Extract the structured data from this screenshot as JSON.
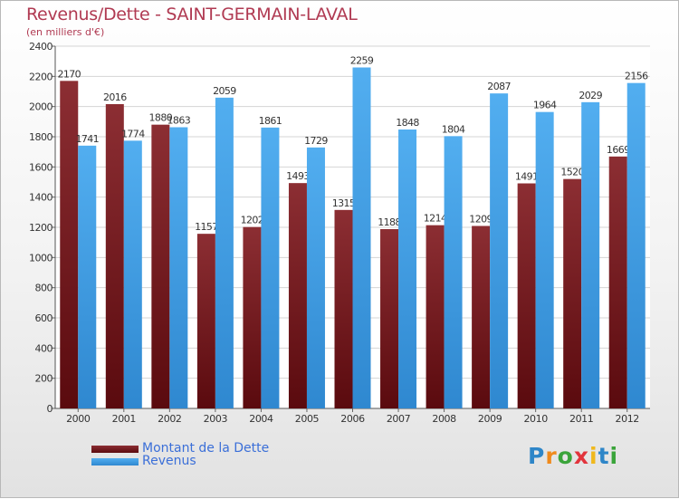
{
  "title": "Revenus/Dette - SAINT-GERMAIN-LAVAL",
  "subtitle": "(en milliers d'€)",
  "logo": {
    "letters": [
      "P",
      "r",
      "o",
      "x",
      "i",
      "t",
      "i"
    ],
    "colors": [
      "#2e86c8",
      "#f08a1c",
      "#3aa43a",
      "#e2343c",
      "#f0b81c",
      "#2e86c8",
      "#3aa43a"
    ]
  },
  "chart_data": {
    "type": "bar",
    "categories": [
      "2000",
      "2001",
      "2002",
      "2003",
      "2004",
      "2005",
      "2006",
      "2007",
      "2008",
      "2009",
      "2010",
      "2011",
      "2012"
    ],
    "series": [
      {
        "name": "Montant de la Dette",
        "color": "#7a1e22",
        "values": [
          2170,
          2016,
          1880,
          1157,
          1202,
          1493,
          1315,
          1188,
          1214,
          1209,
          1491,
          1520,
          1669
        ],
        "labels": [
          "2170",
          "2016",
          "1880",
          "1157",
          "1202",
          "1493",
          "1315",
          "1188",
          "1214",
          "1209",
          "1491",
          "1520",
          "1669"
        ]
      },
      {
        "name": "Revenus",
        "color": "#3d9de3",
        "values": [
          1741,
          1774,
          1863,
          2059,
          1861,
          1729,
          2259,
          1848,
          1804,
          2087,
          1964,
          2029,
          2156
        ],
        "labels": [
          "1741",
          "1774",
          "1863",
          "2059",
          "1861",
          "1729",
          "2259",
          "1848",
          "1804",
          "2087",
          "1964",
          "2029",
          "2156"
        ]
      }
    ],
    "ylim": [
      0,
      2400
    ],
    "yticks": [
      0,
      200,
      400,
      600,
      800,
      1000,
      1200,
      1400,
      1600,
      1800,
      2000,
      2200,
      2400
    ],
    "grid": true,
    "legend_position": "bottom-left"
  }
}
